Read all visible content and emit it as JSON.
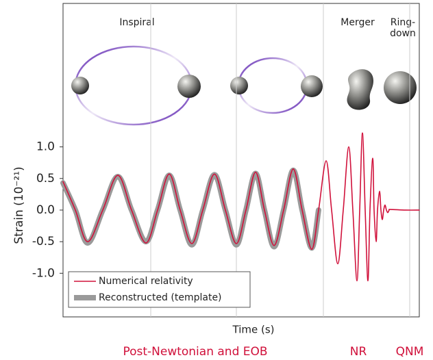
{
  "chart_data": {
    "type": "line",
    "ylabel": "Strain (10⁻²¹)",
    "xlabel": "Time (s)",
    "phases": [
      "Inspiral",
      "Merger",
      "Ring-",
      "down"
    ],
    "methods": [
      {
        "label": "Post-Newtonian and EOB",
        "color": "#d0103a"
      },
      {
        "label": "NR",
        "color": "#d0103a"
      },
      {
        "label": "QNM",
        "color": "#d0103a"
      }
    ],
    "x": [
      0,
      18,
      36,
      58,
      80,
      100,
      121,
      138,
      155,
      171,
      188,
      204,
      221,
      237,
      253,
      267,
      281,
      294,
      308,
      322,
      336,
      349,
      363,
      373,
      384,
      392,
      401,
      409,
      417,
      423,
      429,
      433,
      437,
      441,
      445,
      448,
      452,
      454,
      457,
      459,
      462,
      464,
      466,
      468,
      470,
      472,
      474,
      476,
      478,
      500,
      520
    ],
    "series": [
      {
        "name": "Reconstructed (template)",
        "color": "#9a9a9a",
        "values": [
          0.43,
          0,
          -0.52,
          0,
          0.53,
          0,
          -0.5,
          0,
          0.55,
          0,
          -0.55,
          0,
          0.56,
          0,
          -0.55,
          0,
          0.58,
          0,
          -0.58,
          0,
          0.63,
          0,
          -0.6,
          0,
          null,
          null,
          null,
          null,
          null,
          null,
          null,
          null,
          null,
          null,
          null,
          null,
          null,
          null,
          null,
          null,
          null,
          null,
          null,
          null,
          null,
          null,
          null,
          null,
          null,
          null,
          null
        ]
      },
      {
        "name": "Numerical relativity",
        "color": "#d0103a",
        "values": [
          0.45,
          0,
          -0.5,
          0,
          0.55,
          0,
          -0.52,
          0,
          0.57,
          0,
          -0.53,
          0,
          0.57,
          0,
          -0.53,
          0,
          0.6,
          0,
          -0.56,
          0,
          0.65,
          0,
          -0.62,
          0,
          0.78,
          0,
          -0.85,
          0,
          1.0,
          0,
          -1.12,
          0,
          1.22,
          0,
          -1.12,
          0,
          0.82,
          0,
          -0.5,
          0,
          0.3,
          0,
          -0.15,
          0,
          0.08,
          0,
          -0.04,
          0,
          0.01,
          0,
          0
        ]
      }
    ],
    "xlim": [
      0,
      520
    ],
    "xgrid": [
      128,
      253,
      380,
      506
    ],
    "ylim": [
      -1.69,
      3.27
    ],
    "yticks": [
      {
        "value": 1,
        "label": "1.0"
      },
      0.5,
      {
        "value": 0,
        "label": "0.0"
      },
      -0.5,
      {
        "value": -1,
        "label": "-1.0"
      }
    ],
    "legend": "lower left"
  }
}
